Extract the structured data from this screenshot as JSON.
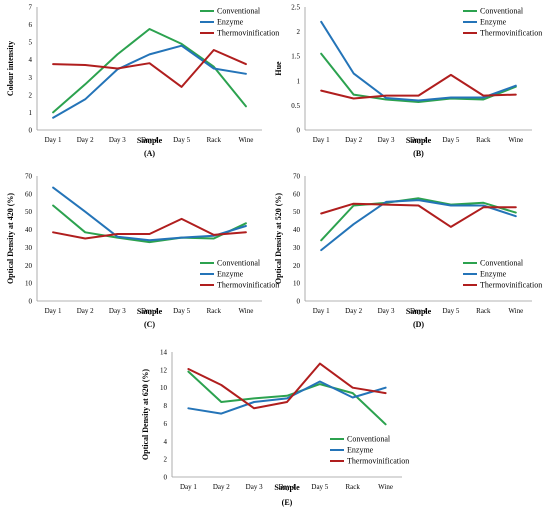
{
  "colors": {
    "Conventional": "#2ca24f",
    "Enzyme": "#2474b8",
    "Thermovinification": "#b01e1e"
  },
  "chart_data": [
    {
      "type": "line",
      "panel": "(A)",
      "categories": [
        "Day 1",
        "Day 2",
        "Day 3",
        "Day 4",
        "Day 5",
        "Rack",
        "Wine"
      ],
      "xlabel": "Sample",
      "ylabel": "Colour intensity",
      "ylim": [
        0,
        7
      ],
      "yticks": [
        "0",
        "1",
        "2",
        "3",
        "4",
        "5",
        "6",
        "7"
      ],
      "legend": "top-right",
      "series": [
        {
          "name": "Conventional",
          "values": [
            1.0,
            2.6,
            4.3,
            5.75,
            4.9,
            3.6,
            1.35
          ]
        },
        {
          "name": "Enzyme",
          "values": [
            0.7,
            1.75,
            3.45,
            4.3,
            4.8,
            3.5,
            3.2
          ]
        },
        {
          "name": "Thermovinification",
          "values": [
            3.75,
            3.7,
            3.5,
            3.8,
            2.45,
            4.55,
            3.75
          ]
        }
      ]
    },
    {
      "type": "line",
      "panel": "(B)",
      "categories": [
        "Day 1",
        "Day 2",
        "Day 3",
        "Day 4",
        "Day 5",
        "Rack",
        "Wine"
      ],
      "xlabel": "Sample",
      "ylabel": "Hue",
      "ylim": [
        0,
        2.5
      ],
      "yticks": [
        "0",
        "0.5",
        "1",
        "1.5",
        "2",
        "2.5"
      ],
      "legend": "top-right",
      "series": [
        {
          "name": "Conventional",
          "values": [
            1.55,
            0.72,
            0.62,
            0.57,
            0.64,
            0.62,
            0.88
          ]
        },
        {
          "name": "Enzyme",
          "values": [
            2.2,
            1.15,
            0.65,
            0.6,
            0.66,
            0.66,
            0.9
          ]
        },
        {
          "name": "Thermovinification",
          "values": [
            0.8,
            0.64,
            0.7,
            0.7,
            1.12,
            0.7,
            0.72
          ]
        }
      ]
    },
    {
      "type": "line",
      "panel": "(C)",
      "categories": [
        "Day 1",
        "Day 2",
        "Day 3",
        "Day 4",
        "Day 5",
        "Rack",
        "Wine"
      ],
      "xlabel": "Sample",
      "ylabel": "Optical Density at 420 (%)",
      "ylim": [
        0,
        70
      ],
      "yticks": [
        "0",
        "10",
        "20",
        "30",
        "40",
        "50",
        "60",
        "70"
      ],
      "legend": "bottom-right",
      "series": [
        {
          "name": "Conventional",
          "values": [
            53.5,
            38.5,
            35.5,
            33.0,
            35.5,
            35.0,
            43.5
          ]
        },
        {
          "name": "Enzyme",
          "values": [
            63.5,
            50.0,
            36.0,
            34.0,
            35.5,
            36.5,
            42.0
          ]
        },
        {
          "name": "Thermovinification",
          "values": [
            38.5,
            35.0,
            37.5,
            37.5,
            46.0,
            37.0,
            38.5
          ]
        }
      ]
    },
    {
      "type": "line",
      "panel": "(D)",
      "categories": [
        "Day 1",
        "Day 2",
        "Day 3",
        "Day 4",
        "Day 5",
        "Rack",
        "Wine"
      ],
      "xlabel": "Sample",
      "ylabel": "Optical Density at 520 (%)",
      "ylim": [
        0,
        70
      ],
      "yticks": [
        "0",
        "10",
        "20",
        "30",
        "40",
        "50",
        "60",
        "70"
      ],
      "legend": "bottom-right",
      "series": [
        {
          "name": "Conventional",
          "values": [
            34.0,
            53.5,
            55.0,
            57.5,
            54.0,
            55.0,
            49.5
          ]
        },
        {
          "name": "Enzyme",
          "values": [
            28.5,
            43.0,
            55.5,
            56.5,
            53.5,
            53.5,
            47.5
          ]
        },
        {
          "name": "Thermovinification",
          "values": [
            49.0,
            54.5,
            54.0,
            53.5,
            41.5,
            52.5,
            52.5
          ]
        }
      ]
    },
    {
      "type": "line",
      "panel": "(E)",
      "categories": [
        "Day 1",
        "Day 2",
        "Day 3",
        "Day 4",
        "Day 5",
        "Rack",
        "Wine"
      ],
      "xlabel": "Sample",
      "ylabel": "Optical Density at 620 (%)",
      "ylim": [
        0,
        14
      ],
      "yticks": [
        "0",
        "2",
        "4",
        "6",
        "8",
        "10",
        "12",
        "14"
      ],
      "legend": "bottom-right",
      "series": [
        {
          "name": "Conventional",
          "values": [
            11.8,
            8.4,
            8.8,
            9.1,
            10.4,
            9.4,
            5.9
          ]
        },
        {
          "name": "Enzyme",
          "values": [
            7.7,
            7.1,
            8.4,
            8.8,
            10.7,
            8.9,
            10.0
          ]
        },
        {
          "name": "Thermovinification",
          "values": [
            12.1,
            10.3,
            7.7,
            8.4,
            12.7,
            10.0,
            9.4
          ]
        }
      ]
    }
  ]
}
